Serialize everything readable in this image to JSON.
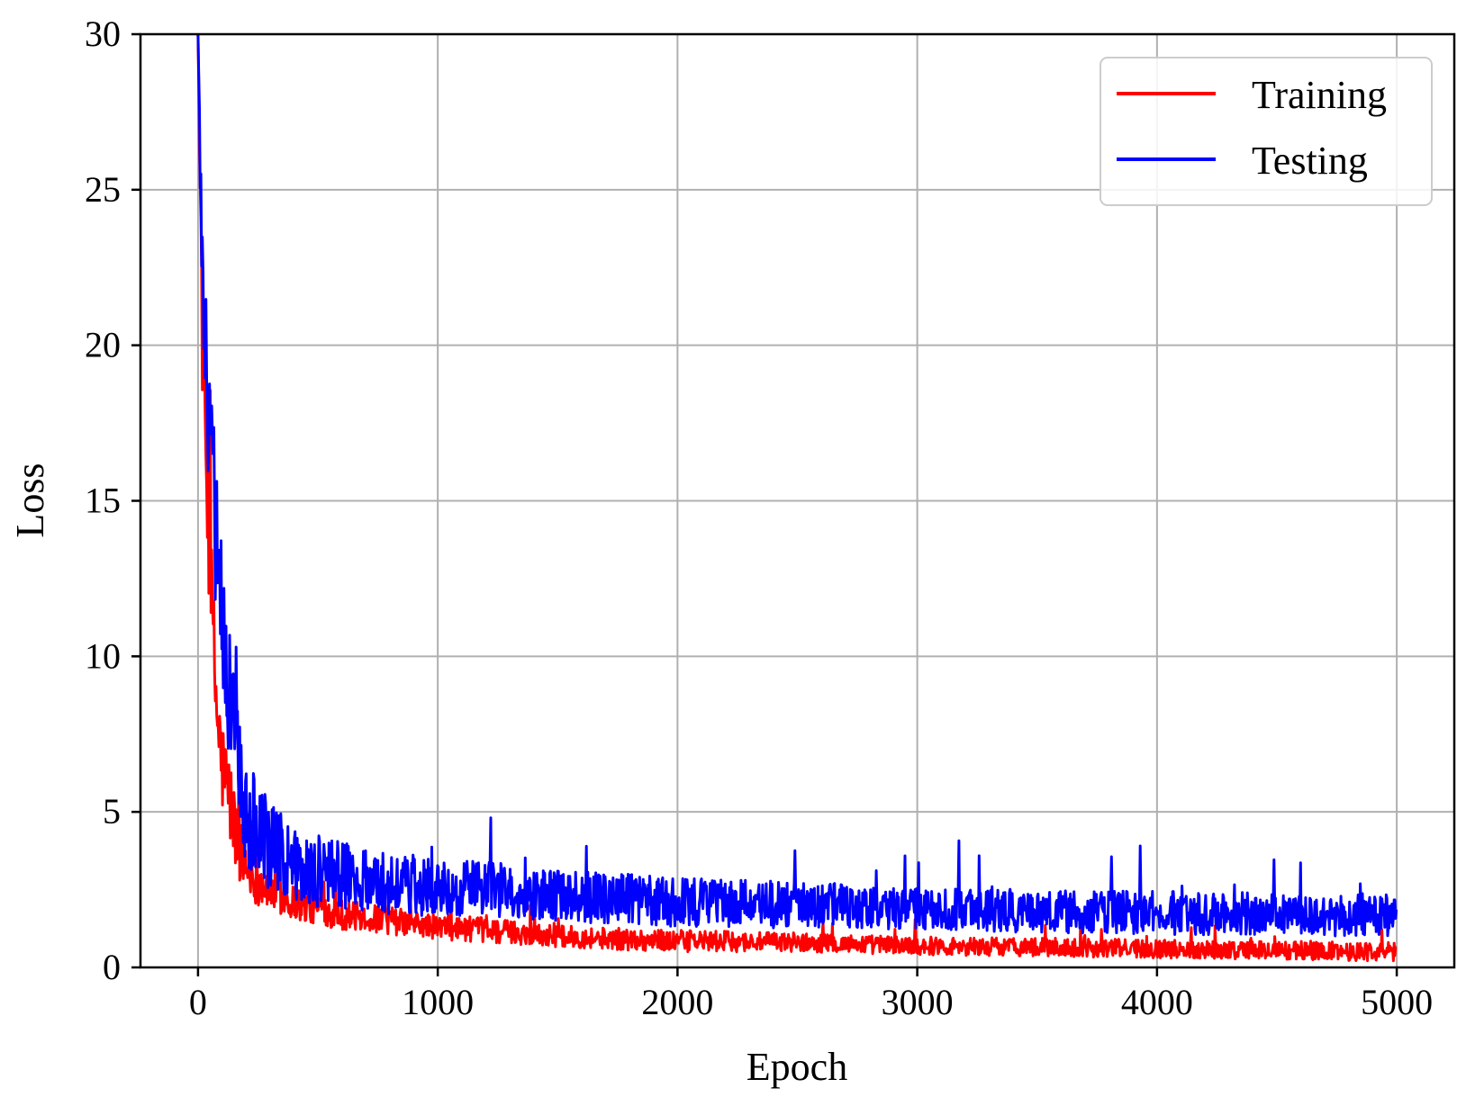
{
  "chart_data": {
    "type": "line",
    "title": "",
    "xlabel": "Epoch",
    "ylabel": "Loss",
    "xlim": [
      -240,
      5240
    ],
    "ylim": [
      0,
      30
    ],
    "xticks": [
      0,
      1000,
      2000,
      3000,
      4000,
      5000
    ],
    "xtick_labels": [
      "0",
      "1000",
      "2000",
      "3000",
      "4000",
      "5000"
    ],
    "yticks": [
      0,
      5,
      10,
      15,
      20,
      25,
      30
    ],
    "ytick_labels": [
      "0",
      "5",
      "10",
      "15",
      "20",
      "25",
      "30"
    ],
    "grid": true,
    "legend_position": "top-right",
    "series": [
      {
        "name": "Training",
        "color": "#ff0000",
        "x": [
          0,
          20,
          40,
          60,
          80,
          100,
          130,
          160,
          200,
          250,
          300,
          400,
          500,
          600,
          700,
          800,
          1000,
          1200,
          1500,
          1800,
          2000,
          2500,
          3000,
          3500,
          4000,
          4500,
          5000
        ],
        "y": [
          30,
          19,
          15,
          11,
          8,
          6.5,
          5.5,
          4.2,
          3.2,
          2.8,
          2.5,
          2.1,
          1.9,
          1.7,
          1.6,
          1.5,
          1.3,
          1.2,
          1.0,
          0.9,
          0.85,
          0.8,
          0.7,
          0.65,
          0.6,
          0.55,
          0.5
        ],
        "noise": [
          0,
          2,
          2,
          2,
          1.8,
          1.6,
          1.5,
          1.2,
          0.9,
          0.8,
          0.7,
          0.6,
          0.55,
          0.5,
          0.45,
          0.45,
          0.4,
          0.4,
          0.35,
          0.35,
          0.35,
          0.3,
          0.3,
          0.3,
          0.3,
          0.3,
          0.3
        ]
      },
      {
        "name": "Testing",
        "color": "#0000ff",
        "x": [
          0,
          20,
          40,
          60,
          80,
          100,
          130,
          160,
          200,
          250,
          300,
          400,
          500,
          600,
          700,
          800,
          1000,
          1200,
          1500,
          1800,
          2000,
          2500,
          3000,
          3500,
          4000,
          4500,
          5000
        ],
        "y": [
          30,
          21,
          18,
          16,
          13,
          11,
          9,
          7,
          5,
          4.3,
          3.9,
          3.3,
          3.1,
          3.0,
          2.8,
          2.7,
          2.6,
          2.5,
          2.3,
          2.2,
          2.1,
          2.0,
          1.9,
          1.8,
          1.75,
          1.7,
          1.7
        ],
        "noise": [
          0,
          2.5,
          2.5,
          2.5,
          2.5,
          2.5,
          2.2,
          2.0,
          1.8,
          1.6,
          1.5,
          1.3,
          1.2,
          1.1,
          1.0,
          1.0,
          0.95,
          0.9,
          0.85,
          0.8,
          0.8,
          0.75,
          0.7,
          0.7,
          0.7,
          0.7,
          0.7
        ]
      }
    ]
  }
}
